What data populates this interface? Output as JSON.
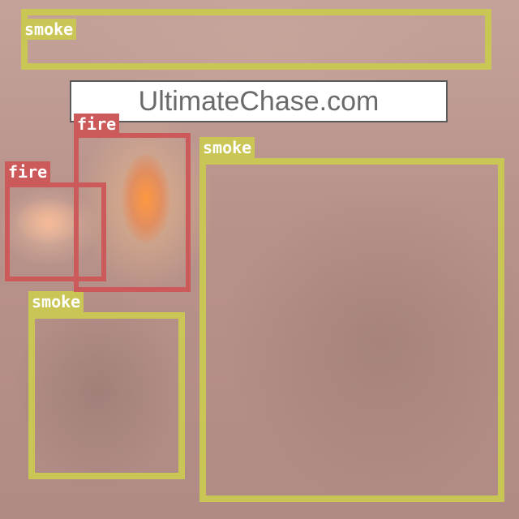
{
  "image": {
    "watermark_text": "UltimateChase.com"
  },
  "class_colors": {
    "smoke": "#c9c656",
    "fire": "#cd5a5a"
  },
  "detections": [
    {
      "label": "smoke"
    },
    {
      "label": "smoke"
    },
    {
      "label": "smoke"
    },
    {
      "label": "fire"
    },
    {
      "label": "fire"
    }
  ]
}
